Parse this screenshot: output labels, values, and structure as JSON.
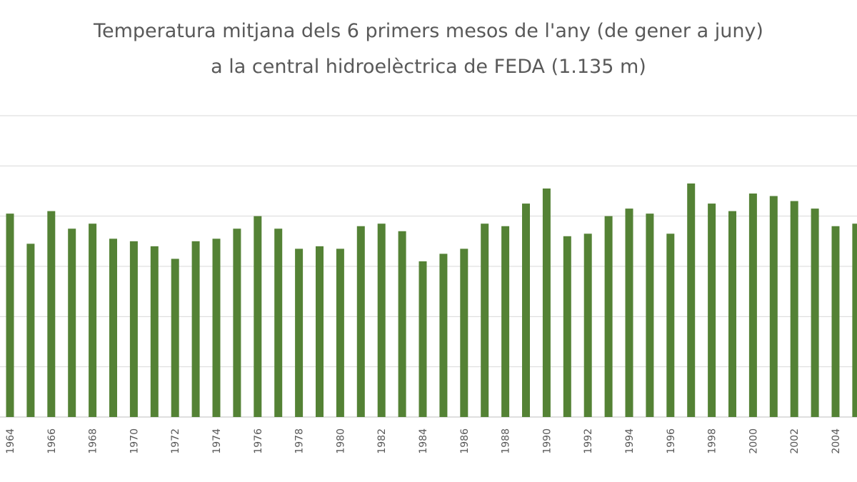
{
  "chart_data": {
    "type": "bar",
    "title": [
      "Temperatura mitjana dels 6 primers mesos de l'any (de gener a juny)",
      "a la central hidroelèctrica de FEDA (1.135 m)"
    ],
    "categories": [
      "1964",
      null,
      "1966",
      null,
      "1968",
      null,
      "1970",
      null,
      "1972",
      null,
      "1974",
      null,
      "1976",
      null,
      "1978",
      null,
      "1980",
      null,
      "1982",
      null,
      "1984",
      null,
      "1986",
      null,
      "1988",
      null,
      "1990",
      null,
      "1992",
      null,
      "1994",
      null,
      "1996",
      null,
      "1998",
      null,
      "2000",
      null,
      "2002",
      null,
      "2004",
      null
    ],
    "values": [
      8.1,
      6.9,
      8.2,
      7.5,
      7.7,
      7.1,
      7.0,
      6.8,
      6.3,
      7.0,
      7.1,
      7.5,
      8.0,
      7.5,
      6.7,
      6.8,
      6.7,
      7.6,
      7.7,
      7.4,
      6.2,
      6.5,
      6.7,
      7.7,
      7.6,
      8.5,
      9.1,
      7.2,
      7.3,
      8.0,
      8.3,
      8.1,
      7.3,
      9.3,
      8.5,
      8.2,
      8.9,
      8.8,
      8.6,
      8.3,
      7.6,
      7.7
    ],
    "color": "#548235",
    "ylim": [
      0,
      12
    ],
    "yticks": [
      0,
      2,
      4,
      6,
      8,
      10,
      12
    ],
    "ytick_labels": false,
    "grid": true
  }
}
